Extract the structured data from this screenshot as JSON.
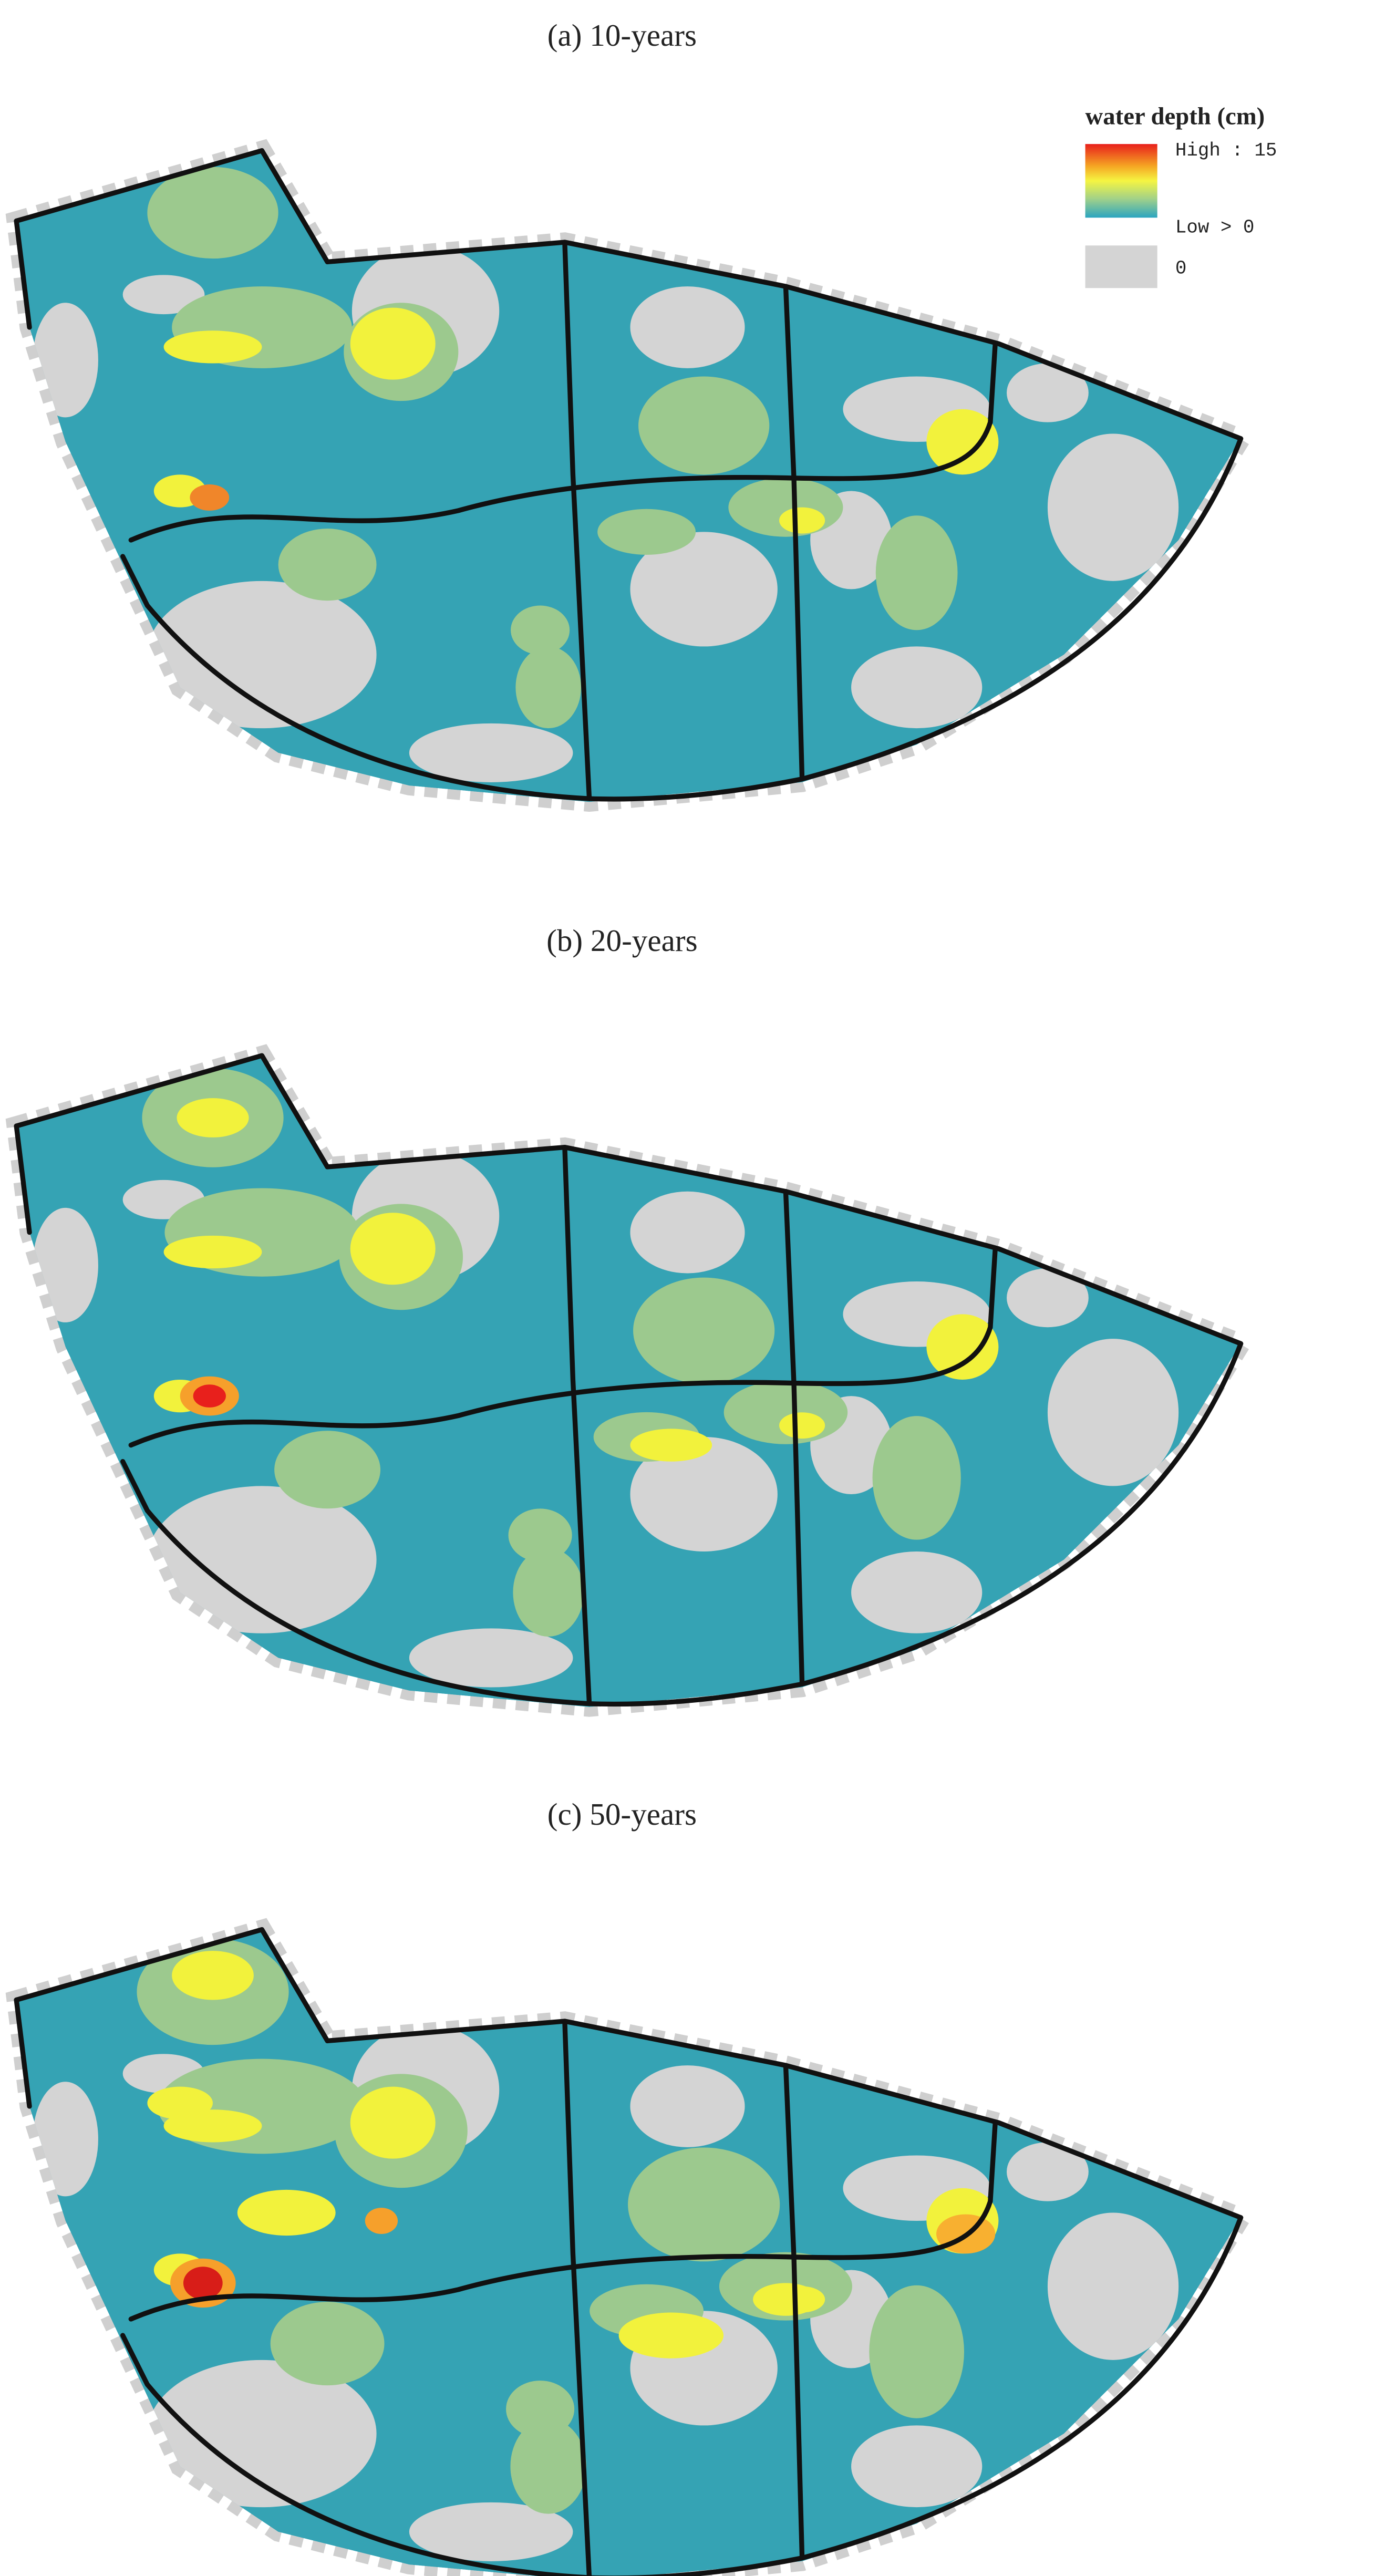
{
  "panels": [
    {
      "title": "(a) 10-years"
    },
    {
      "title": "(b) 20-years"
    },
    {
      "title": "(c) 50-years"
    }
  ],
  "legend": {
    "title": "water depth (cm)",
    "high": "High : 15",
    "low": "Low > 0",
    "zero": "0"
  }
}
